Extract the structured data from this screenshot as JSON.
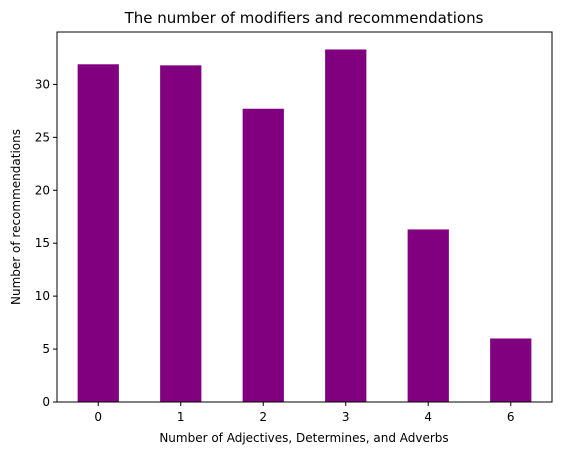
{
  "chart_data": {
    "type": "bar",
    "title": "The number of modifiers and recommendations",
    "xlabel": "Number of Adjectives, Determines, and Adverbs",
    "ylabel": "Number of recommendations",
    "categories": [
      "0",
      "1",
      "2",
      "3",
      "4",
      "6"
    ],
    "values": [
      31.9,
      31.8,
      27.7,
      33.3,
      16.3,
      6.0
    ],
    "ylim": [
      0,
      34.95
    ],
    "yticks": [
      0,
      5,
      10,
      15,
      20,
      25,
      30
    ],
    "grid": false,
    "legend": "none",
    "bar_color": "#800080"
  }
}
